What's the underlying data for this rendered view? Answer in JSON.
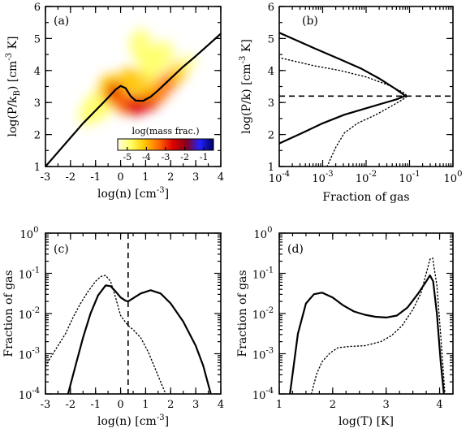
{
  "chart_data": [
    {
      "panel": "(a)",
      "type": "heatmap",
      "xlabel": "log(n) [cm",
      "xlabel_sup": "-3",
      "xlabel_end": "]",
      "ylabel": "log(P/k",
      "ylabel_sub": "B",
      "ylabel_mid": ") [cm",
      "ylabel_sup": "-3",
      "ylabel_end": " K]",
      "xlim": [
        -3,
        4
      ],
      "ylim": [
        1,
        6
      ],
      "xticks": [
        "-3",
        "-2",
        "-1",
        "0",
        "1",
        "2",
        "3",
        "4"
      ],
      "yticks": [
        "1",
        "2",
        "3",
        "4",
        "5",
        "6"
      ],
      "colorbar": {
        "title": "log(mass frac.)",
        "range": [
          -5.5,
          -0.5
        ],
        "ticks": [
          "-5",
          "-4",
          "-3",
          "-2",
          "-1"
        ],
        "tick_values": [
          -5,
          -4,
          -3,
          -2,
          -1
        ],
        "colors": [
          "#fffde0",
          "#ffff60",
          "#ffc400",
          "#ff6a00",
          "#e00000",
          "#8a0018",
          "#2020ff",
          "#000060"
        ]
      },
      "series": [
        {
          "style": "solid",
          "x": [
            -3.0,
            -2.5,
            -2.0,
            -1.5,
            -1.0,
            -0.5,
            -0.2,
            0.0,
            0.2,
            0.4,
            0.6,
            0.9,
            1.2,
            1.5,
            2.0,
            2.5,
            3.0,
            3.5,
            4.0
          ],
          "y": [
            1.0,
            1.45,
            1.9,
            2.35,
            2.75,
            3.15,
            3.4,
            3.52,
            3.45,
            3.2,
            3.06,
            3.05,
            3.18,
            3.38,
            3.75,
            4.12,
            4.45,
            4.8,
            5.15
          ]
        }
      ]
    },
    {
      "panel": "(b)",
      "type": "line",
      "xlabel": "Fraction of gas",
      "ylabel": "log(P/k) [cm",
      "ylabel_sup": "-3",
      "ylabel_end": " K]",
      "xscale": "log",
      "xlim_exp": [
        -4,
        0
      ],
      "ylim": [
        1,
        6
      ],
      "xticks_exp": [
        "-4",
        "-3",
        "-2",
        "-1",
        "0"
      ],
      "yticks": [
        "1",
        "2",
        "3",
        "4",
        "5",
        "6"
      ],
      "hline": 3.2,
      "series": [
        {
          "style": "solid",
          "x_exp": [
            -4.0,
            -3.5,
            -3.0,
            -2.5,
            -2.0,
            -1.6,
            -1.3,
            -1.15,
            -1.1,
            -1.15,
            -1.35,
            -1.7,
            -2.1,
            -2.6,
            -3.2,
            -4.0
          ],
          "y": [
            1.72,
            2.03,
            2.35,
            2.62,
            2.82,
            2.98,
            3.1,
            3.18,
            3.2,
            3.26,
            3.45,
            3.75,
            4.05,
            4.35,
            4.7,
            5.18
          ]
        },
        {
          "style": "dotted",
          "x_exp": [
            -2.9,
            -2.7,
            -2.5,
            -2.2,
            -1.8,
            -1.4,
            -1.15,
            -1.05,
            -1.15,
            -1.5,
            -2.0,
            -2.6,
            -3.2,
            -4.0
          ],
          "y": [
            1.0,
            1.6,
            2.05,
            2.35,
            2.6,
            2.9,
            3.1,
            3.2,
            3.32,
            3.55,
            3.8,
            4.0,
            4.15,
            4.4
          ]
        }
      ]
    },
    {
      "panel": "(c)",
      "type": "line",
      "xlabel": "log(n) [cm",
      "xlabel_sup": "-3",
      "xlabel_end": "]",
      "ylabel": "Fraction of gas",
      "yscale": "log",
      "xlim": [
        -3,
        4
      ],
      "ylim_exp": [
        -4,
        0
      ],
      "xticks": [
        "-3",
        "-2",
        "-1",
        "0",
        "1",
        "2",
        "3",
        "4"
      ],
      "yticks_exp": [
        "-4",
        "-3",
        "-2",
        "-1",
        "0"
      ],
      "vline": 0.3,
      "series": [
        {
          "style": "solid",
          "x": [
            -2.1,
            -1.8,
            -1.5,
            -1.2,
            -0.9,
            -0.6,
            -0.4,
            -0.2,
            0.0,
            0.2,
            0.3,
            0.5,
            0.8,
            1.2,
            1.6,
            2.0,
            2.5,
            3.0,
            3.3,
            3.6
          ],
          "y_exp": [
            -4.0,
            -3.3,
            -2.6,
            -2.0,
            -1.55,
            -1.3,
            -1.32,
            -1.45,
            -1.6,
            -1.68,
            -1.7,
            -1.62,
            -1.5,
            -1.42,
            -1.5,
            -1.75,
            -2.2,
            -2.8,
            -3.3,
            -4.0
          ]
        },
        {
          "style": "dotted",
          "x": [
            -3.0,
            -2.6,
            -2.2,
            -1.9,
            -1.6,
            -1.3,
            -1.0,
            -0.8,
            -0.6,
            -0.4,
            -0.2,
            0.0,
            0.3,
            0.5,
            0.8,
            1.1,
            1.4,
            1.6,
            1.8
          ],
          "y_exp": [
            -3.3,
            -2.9,
            -2.5,
            -2.1,
            -1.75,
            -1.45,
            -1.2,
            -1.08,
            -1.05,
            -1.2,
            -1.6,
            -2.05,
            -2.3,
            -2.4,
            -2.6,
            -2.95,
            -3.4,
            -3.7,
            -4.0
          ]
        }
      ]
    },
    {
      "panel": "(d)",
      "type": "line",
      "xlabel": "log(T) [K]",
      "ylabel": "Fraction of gas",
      "yscale": "log",
      "xlim": [
        1,
        4.25
      ],
      "ylim_exp": [
        -4,
        0
      ],
      "xticks": [
        "1",
        "2",
        "3",
        "4"
      ],
      "yticks_exp": [
        "-4",
        "-3",
        "-2",
        "-1",
        "0"
      ],
      "series": [
        {
          "style": "solid",
          "x": [
            1.2,
            1.35,
            1.5,
            1.65,
            1.8,
            2.0,
            2.2,
            2.4,
            2.6,
            2.8,
            3.0,
            3.2,
            3.4,
            3.6,
            3.75,
            3.82,
            3.88,
            3.95,
            4.02,
            4.08
          ],
          "y_exp": [
            -4.0,
            -2.5,
            -1.75,
            -1.52,
            -1.48,
            -1.6,
            -1.8,
            -1.95,
            -2.03,
            -2.08,
            -2.1,
            -2.05,
            -1.85,
            -1.5,
            -1.2,
            -1.05,
            -1.2,
            -2.0,
            -3.2,
            -4.0
          ]
        },
        {
          "style": "dotted",
          "x": [
            1.6,
            1.7,
            1.8,
            1.95,
            2.1,
            2.3,
            2.6,
            2.9,
            3.1,
            3.3,
            3.5,
            3.65,
            3.75,
            3.82,
            3.87,
            3.95,
            4.03,
            4.1
          ],
          "y_exp": [
            -4.0,
            -3.5,
            -3.2,
            -2.98,
            -2.85,
            -2.82,
            -2.8,
            -2.7,
            -2.55,
            -2.3,
            -1.9,
            -1.5,
            -1.0,
            -0.65,
            -0.62,
            -1.3,
            -2.7,
            -4.0
          ]
        }
      ]
    }
  ]
}
